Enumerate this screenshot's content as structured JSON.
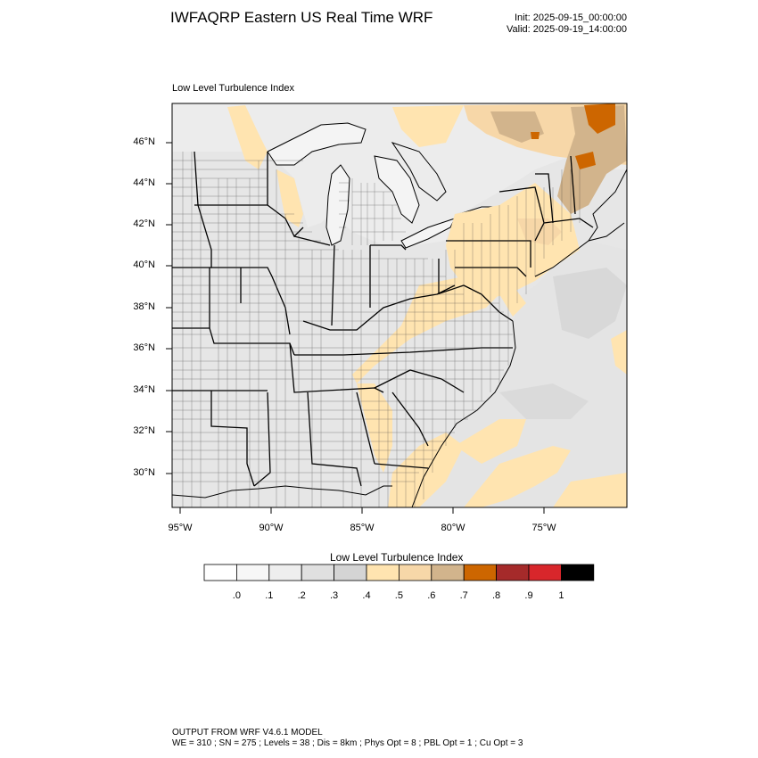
{
  "header": {
    "title": "IWFAQRP Eastern US Real Time WRF",
    "init": "Init: 2025-09-15_00:00:00",
    "valid": "Valid: 2025-09-19_14:00:00"
  },
  "plot": {
    "label": "Low Level Turbulence Index",
    "lat_ticks": [
      "46°N",
      "44°N",
      "42°N",
      "40°N",
      "38°N",
      "36°N",
      "34°N",
      "32°N",
      "30°N"
    ],
    "lon_ticks": [
      "95°W",
      "90°W",
      "85°W",
      "80°W",
      "75°W"
    ]
  },
  "colorbar": {
    "title": "Low Level Turbulence Index",
    "labels": [
      ".0",
      ".1",
      ".2",
      ".3",
      ".4",
      ".5",
      ".6",
      ".7",
      ".8",
      ".9",
      "1"
    ],
    "colors": [
      "#ffffff",
      "#f7f7f7",
      "#eeeeee",
      "#e0e0e0",
      "#d4d4d4",
      "#ffe4b0",
      "#f7d7a8",
      "#d2b48c",
      "#cd6600",
      "#a52a2a",
      "#d8262b",
      "#000000"
    ]
  },
  "footer": {
    "line1": "OUTPUT FROM WRF V4.6.1 MODEL",
    "line2": "WE = 310 ; SN = 275 ; Levels = 38 ; Dis = 8km ; Phys Opt = 8 ; PBL Opt = 1 ; Cu Opt = 3"
  }
}
